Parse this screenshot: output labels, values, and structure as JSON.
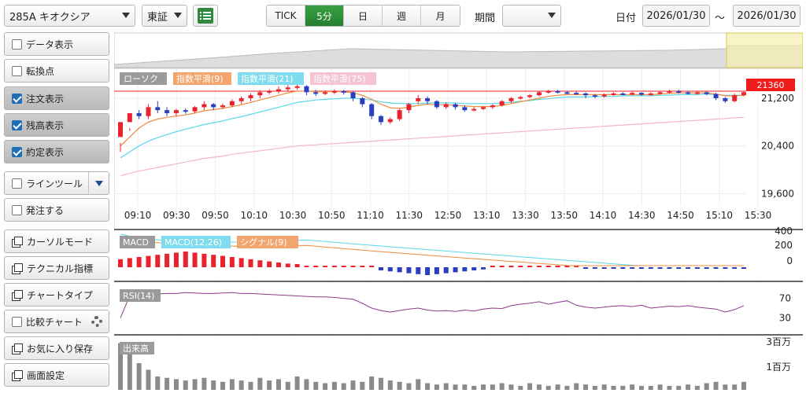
{
  "toolbar": {
    "symbol": "285A キオクシア",
    "market": "東証",
    "intervals": [
      {
        "label": "TICK",
        "active": false
      },
      {
        "label": "5分",
        "active": true
      },
      {
        "label": "日",
        "active": false
      },
      {
        "label": "週",
        "active": false
      },
      {
        "label": "月",
        "active": false
      }
    ],
    "period_label": "期間",
    "period_value": "",
    "date_label": "日付",
    "date_from": "2026/01/30",
    "tilde": "～",
    "date_to": "2026/01/30"
  },
  "sidebar": {
    "data_display": "データ表示",
    "turning_point": "転換点",
    "order_display": "注文表示",
    "execution_display": "約定表示",
    "position_display": "残高表示",
    "line_tool": "ラインツール",
    "place_order": "発注する",
    "cursor_mode": "カーソルモード",
    "technical": "テクニカル指標",
    "chart_type": "チャートタイプ",
    "compare": "比較チャート",
    "favorites": "お気に入り保存",
    "screen_settings": "画面設定"
  },
  "legend": {
    "candle": "ローソク",
    "ema1": "指数平滑(9)",
    "ema2": "指数平滑(21)",
    "ema3": "指数平滑(75)",
    "macd": "MACD",
    "macd_line": "MACD(12,26)",
    "signal": "シグナル(9)",
    "rsi": "RSI(14)",
    "volume": "出来高"
  },
  "colors": {
    "up": "#e8232d",
    "down": "#2a3fbf",
    "ema9": "#f08a3c",
    "ema21": "#58d8ea",
    "ema75": "#f2b6c6",
    "rsi": "#8a3a8a",
    "accent": "#2e8b3e",
    "price_tag": "#ee1c1c"
  },
  "price_tag": "21360",
  "chart_data": {
    "type": "candlestick",
    "x_ticks": [
      "09:10",
      "09:30",
      "09:50",
      "10:10",
      "10:30",
      "10:50",
      "11:10",
      "11:30",
      "12:50",
      "13:10",
      "13:30",
      "13:50",
      "14:10",
      "14:30",
      "14:50",
      "15:10",
      "15:30"
    ],
    "y_ticks": [
      "21,200",
      "20,400",
      "19,600"
    ],
    "y_range": [
      19000,
      21700
    ],
    "candles": [
      [
        20550,
        20800,
        20450,
        20300
      ],
      [
        20800,
        20950,
        20700,
        20650
      ],
      [
        20950,
        20900,
        21000,
        20850
      ],
      [
        20900,
        21050,
        21100,
        20850
      ],
      [
        21050,
        21000,
        21150,
        20950
      ],
      [
        21000,
        20950,
        21050,
        20900
      ],
      [
        20950,
        21000,
        21020,
        20900
      ],
      [
        21000,
        20980,
        21030,
        20940
      ],
      [
        20980,
        21050,
        21070,
        20950
      ],
      [
        21050,
        21100,
        21150,
        21000
      ],
      [
        21100,
        21050,
        21120,
        21000
      ],
      [
        21050,
        21080,
        21110,
        21020
      ],
      [
        21080,
        21150,
        21180,
        21050
      ],
      [
        21150,
        21200,
        21230,
        21100
      ],
      [
        21200,
        21250,
        21280,
        21150
      ],
      [
        21250,
        21300,
        21330,
        21200
      ],
      [
        21300,
        21320,
        21350,
        21260
      ],
      [
        21320,
        21350,
        21400,
        21280
      ],
      [
        21350,
        21380,
        21420,
        21320
      ],
      [
        21380,
        21400,
        21450,
        21340
      ],
      [
        21400,
        21300,
        21420,
        21250
      ],
      [
        21300,
        21280,
        21340,
        21240
      ],
      [
        21280,
        21300,
        21330,
        21250
      ],
      [
        21300,
        21320,
        21350,
        21270
      ],
      [
        21320,
        21300,
        21340,
        21260
      ],
      [
        21300,
        21200,
        21320,
        21150
      ],
      [
        21200,
        21100,
        21220,
        21050
      ],
      [
        21100,
        20900,
        21120,
        20850
      ],
      [
        20900,
        20800,
        20920,
        20750
      ],
      [
        20800,
        20850,
        20880,
        20770
      ],
      [
        20850,
        21000,
        21020,
        20820
      ],
      [
        21000,
        21100,
        21120,
        20950
      ],
      [
        21150,
        21200,
        21250,
        21100
      ],
      [
        21200,
        21150,
        21230,
        21100
      ],
      [
        21150,
        21050,
        21170,
        21020
      ],
      [
        21050,
        21100,
        21130,
        21020
      ],
      [
        21100,
        21050,
        21120,
        21010
      ],
      [
        21050,
        21000,
        21080,
        20970
      ],
      [
        21000,
        21020,
        21050,
        20980
      ],
      [
        21020,
        21050,
        21070,
        21000
      ],
      [
        21050,
        21080,
        21100,
        21020
      ],
      [
        21080,
        21150,
        21170,
        21060
      ],
      [
        21150,
        21200,
        21220,
        21120
      ],
      [
        21200,
        21220,
        21240,
        21180
      ],
      [
        21220,
        21250,
        21270,
        21200
      ],
      [
        21250,
        21300,
        21320,
        21230
      ],
      [
        21300,
        21320,
        21340,
        21280
      ],
      [
        21320,
        21300,
        21340,
        21280
      ],
      [
        21300,
        21290,
        21320,
        21270
      ],
      [
        21290,
        21280,
        21310,
        21260
      ],
      [
        21280,
        21250,
        21300,
        21200
      ],
      [
        21250,
        21230,
        21270,
        21200
      ],
      [
        21230,
        21260,
        21280,
        21210
      ],
      [
        21260,
        21280,
        21300,
        21240
      ],
      [
        21280,
        21270,
        21300,
        21250
      ],
      [
        21270,
        21290,
        21310,
        21250
      ],
      [
        21290,
        21260,
        21300,
        21240
      ],
      [
        21260,
        21280,
        21300,
        21240
      ],
      [
        21280,
        21300,
        21320,
        21260
      ],
      [
        21300,
        21320,
        21340,
        21280
      ],
      [
        21320,
        21300,
        21340,
        21280
      ],
      [
        21300,
        21280,
        21320,
        21260
      ],
      [
        21280,
        21300,
        21320,
        21260
      ],
      [
        21300,
        21270,
        21310,
        21250
      ],
      [
        21270,
        21200,
        21290,
        21170
      ],
      [
        21200,
        21150,
        21220,
        21120
      ],
      [
        21150,
        21250,
        21280,
        21130
      ],
      [
        21250,
        21300,
        21320,
        21230
      ]
    ],
    "ema9": [
      20400,
      20550,
      20700,
      20800,
      20850,
      20880,
      20900,
      20920,
      20950,
      20990,
      21010,
      21030,
      21060,
      21090,
      21130,
      21170,
      21210,
      21250,
      21290,
      21320,
      21320,
      21310,
      21310,
      21310,
      21310,
      21290,
      21250,
      21180,
      21100,
      21040,
      21030,
      21050,
      21080,
      21100,
      21090,
      21090,
      21080,
      21070,
      21060,
      21060,
      21060,
      21080,
      21110,
      21140,
      21170,
      21200,
      21230,
      21250,
      21260,
      21260,
      21260,
      21260,
      21260,
      21260,
      21260,
      21260,
      21260,
      21260,
      21270,
      21280,
      21290,
      21290,
      21290,
      21290,
      21270,
      21240,
      21240,
      21250
    ],
    "ema21": [
      20200,
      20300,
      20400,
      20480,
      20540,
      20590,
      20640,
      20680,
      20720,
      20760,
      20790,
      20820,
      20860,
      20890,
      20930,
      20970,
      21010,
      21050,
      21090,
      21130,
      21150,
      21170,
      21180,
      21190,
      21200,
      21200,
      21190,
      21170,
      21140,
      21120,
      21110,
      21110,
      21110,
      21120,
      21120,
      21120,
      21120,
      21110,
      21110,
      21110,
      21110,
      21120,
      21130,
      21150,
      21160,
      21180,
      21190,
      21210,
      21220,
      21220,
      21220,
      21230,
      21230,
      21230,
      21240,
      21240,
      21240,
      21240,
      21250,
      21250,
      21260,
      21260,
      21260,
      21270,
      21260,
      21250,
      21250,
      21250
    ],
    "ema75": [
      19900,
      19940,
      19980,
      20010,
      20040,
      20070,
      20100,
      20130,
      20160,
      20190,
      20210,
      20230,
      20260,
      20280,
      20300,
      20320,
      20340,
      20360,
      20380,
      20400,
      20410,
      20420,
      20430,
      20440,
      20450,
      20460,
      20470,
      20480,
      20490,
      20500,
      20510,
      20520,
      20530,
      20540,
      20550,
      20560,
      20570,
      20580,
      20590,
      20600,
      20610,
      20620,
      20630,
      20640,
      20650,
      20660,
      20670,
      20680,
      20690,
      20700,
      20710,
      20720,
      20730,
      20740,
      20750,
      20760,
      20770,
      20780,
      20790,
      20800,
      20810,
      20820,
      20830,
      20840,
      20850,
      20860,
      20870,
      20880
    ],
    "macd_ticks": [
      "400",
      "200",
      "0"
    ],
    "macd_range": [
      -150,
      450
    ],
    "rsi_ticks": [
      "70",
      "30"
    ],
    "rsi_range": [
      0,
      100
    ],
    "rsi": [
      30,
      75,
      78,
      80,
      79,
      80,
      80,
      82,
      81,
      80,
      80,
      81,
      82,
      80,
      80,
      79,
      78,
      77,
      76,
      75,
      74,
      73,
      73,
      72,
      70,
      68,
      60,
      50,
      45,
      42,
      45,
      48,
      50,
      46,
      44,
      45,
      43,
      46,
      44,
      48,
      50,
      49,
      55,
      58,
      60,
      63,
      58,
      62,
      65,
      56,
      52,
      50,
      52,
      54,
      55,
      53,
      56,
      50,
      52,
      54,
      53,
      55,
      52,
      50,
      48,
      42,
      47,
      55
    ],
    "vol_ticks": [
      "3百万",
      "1百万"
    ]
  }
}
